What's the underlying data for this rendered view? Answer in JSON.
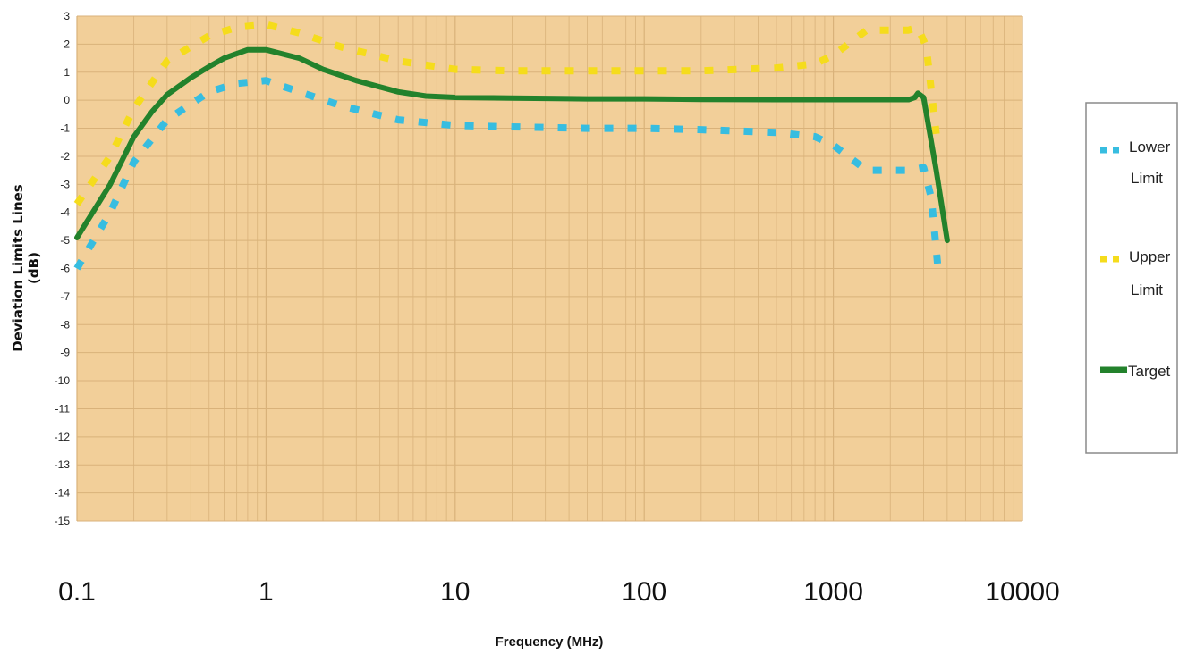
{
  "chart_data": {
    "type": "line",
    "title": "",
    "xlabel": "Frequency (MHz)",
    "ylabel_line1": "Deviation Limits Lines",
    "ylabel_line2": "(dB)",
    "x_scale": "log",
    "xlim": [
      0.1,
      10000
    ],
    "ylim": [
      -15,
      3
    ],
    "x_ticks": [
      "0.1",
      "1",
      "10",
      "100",
      "1000",
      "10000"
    ],
    "y_ticks": [
      "3",
      "2",
      "1",
      "0",
      "-1",
      "-2",
      "-3",
      "-4",
      "-5",
      "-6",
      "-7",
      "-8",
      "-9",
      "-10",
      "-11",
      "-12",
      "-13",
      "-14",
      "-15"
    ],
    "grid": true,
    "legend_position": "right",
    "colors": {
      "plot_background": "#f2cf99",
      "grid": "#d9b27a",
      "lower": "#37bde0",
      "upper": "#f5dc1c",
      "target": "#23822c"
    },
    "series": [
      {
        "name": "Lower Limit",
        "line": "dashed",
        "color": "#37bde0",
        "x": [
          0.1,
          0.15,
          0.2,
          0.3,
          0.5,
          0.7,
          1,
          1.5,
          2.5,
          5,
          10,
          20,
          50,
          100,
          200,
          500,
          800,
          1000,
          1500,
          2500,
          3000,
          3300,
          3600
        ],
        "y": [
          -6,
          -4,
          -2.2,
          -0.7,
          0.3,
          0.6,
          0.7,
          0.3,
          -0.2,
          -0.7,
          -0.9,
          -0.95,
          -1,
          -1,
          -1.05,
          -1.15,
          -1.3,
          -1.6,
          -2.5,
          -2.5,
          -2.4,
          -3.5,
          -6.2
        ]
      },
      {
        "name": "Upper Limit",
        "line": "dashed",
        "color": "#f5dc1c",
        "x": [
          0.1,
          0.15,
          0.2,
          0.3,
          0.5,
          0.7,
          1,
          1.5,
          2.5,
          5,
          10,
          20,
          50,
          100,
          200,
          500,
          800,
          1000,
          1500,
          2500,
          2800,
          3100,
          3500
        ],
        "y": [
          -3.7,
          -2,
          -0.3,
          1.4,
          2.3,
          2.6,
          2.7,
          2.4,
          1.9,
          1.4,
          1.1,
          1.05,
          1.05,
          1.05,
          1.05,
          1.15,
          1.3,
          1.6,
          2.5,
          2.5,
          2.6,
          1.9,
          -1.2
        ]
      },
      {
        "name": "Target",
        "line": "solid",
        "color": "#23822c",
        "x": [
          0.1,
          0.15,
          0.2,
          0.25,
          0.3,
          0.4,
          0.5,
          0.6,
          0.8,
          1,
          1.5,
          2,
          3,
          5,
          7,
          10,
          20,
          50,
          100,
          200,
          500,
          1000,
          2000,
          2500,
          2700,
          2800,
          3000,
          3500,
          4000
        ],
        "y": [
          -4.9,
          -3,
          -1.3,
          -0.4,
          0.2,
          0.8,
          1.2,
          1.5,
          1.8,
          1.8,
          1.5,
          1.1,
          0.7,
          0.3,
          0.15,
          0.1,
          0.08,
          0.05,
          0.05,
          0.03,
          0.02,
          0.02,
          0.02,
          0.02,
          0.1,
          0.25,
          0.1,
          -2.5,
          -5
        ]
      }
    ]
  }
}
